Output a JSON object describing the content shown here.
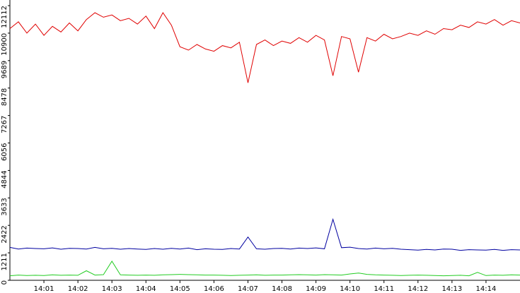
{
  "chart_data": {
    "type": "line",
    "x": [
      0,
      0.25,
      0.5,
      0.75,
      1,
      1.25,
      1.5,
      1.75,
      2,
      2.25,
      2.5,
      2.75,
      3,
      3.25,
      3.5,
      3.75,
      4,
      4.25,
      4.5,
      4.75,
      5,
      5.25,
      5.5,
      5.75,
      6,
      6.25,
      6.5,
      6.75,
      7,
      7.25,
      7.5,
      7.75,
      8,
      8.25,
      8.5,
      8.75,
      9,
      9.25,
      9.5,
      9.75,
      10,
      10.25,
      10.5,
      10.75,
      11,
      11.25,
      11.5,
      11.75,
      12,
      12.25,
      12.5,
      12.75,
      13,
      13.25,
      13.5,
      13.75,
      14,
      14.25,
      14.5,
      14.75,
      15
    ],
    "series": [
      {
        "color": "#e00000",
        "values": [
          11100,
          11400,
          10900,
          11300,
          10800,
          11200,
          10950,
          11350,
          11000,
          11500,
          11800,
          11600,
          11700,
          11450,
          11550,
          11300,
          11650,
          11100,
          11800,
          11250,
          10300,
          10150,
          10400,
          10200,
          10100,
          10350,
          10250,
          10500,
          8710,
          10400,
          10600,
          10350,
          10550,
          10450,
          10700,
          10500,
          10800,
          10600,
          9020,
          10750,
          10650,
          9180,
          10700,
          10550,
          10850,
          10650,
          10750,
          10900,
          10800,
          11000,
          10850,
          11100,
          11050,
          11250,
          11150,
          11400,
          11300,
          11500,
          11250,
          11450,
          11350
        ]
      },
      {
        "color": "#0000a0",
        "values": [
          1450,
          1380,
          1420,
          1400,
          1390,
          1430,
          1370,
          1410,
          1400,
          1380,
          1450,
          1390,
          1410,
          1370,
          1400,
          1380,
          1360,
          1400,
          1370,
          1410,
          1380,
          1420,
          1350,
          1390,
          1370,
          1360,
          1400,
          1380,
          1910,
          1390,
          1370,
          1400,
          1410,
          1380,
          1420,
          1400,
          1430,
          1390,
          2690,
          1440,
          1460,
          1400,
          1380,
          1420,
          1390,
          1410,
          1370,
          1350,
          1330,
          1360,
          1340,
          1380,
          1370,
          1320,
          1350,
          1340,
          1330,
          1360,
          1320,
          1350,
          1340
        ]
      },
      {
        "color": "#22cc22",
        "values": [
          200,
          230,
          210,
          220,
          210,
          240,
          220,
          230,
          220,
          420,
          230,
          250,
          840,
          240,
          230,
          220,
          230,
          220,
          240,
          250,
          260,
          250,
          240,
          230,
          230,
          220,
          210,
          220,
          230,
          240,
          220,
          230,
          230,
          240,
          250,
          240,
          230,
          250,
          240,
          230,
          280,
          320,
          260,
          240,
          230,
          220,
          210,
          220,
          230,
          220,
          210,
          200,
          210,
          220,
          200,
          350,
          210,
          230,
          220,
          240,
          230
        ]
      }
    ],
    "xlim": [
      0,
      15
    ],
    "xticks": [
      {
        "value": 1,
        "label": "14:01"
      },
      {
        "value": 2,
        "label": "14:02"
      },
      {
        "value": 3,
        "label": "14:03"
      },
      {
        "value": 4,
        "label": "14:04"
      },
      {
        "value": 5,
        "label": "14:05"
      },
      {
        "value": 6,
        "label": "14:06"
      },
      {
        "value": 7,
        "label": "14:07"
      },
      {
        "value": 8,
        "label": "14:08"
      },
      {
        "value": 9,
        "label": "14:09"
      },
      {
        "value": 10,
        "label": "14:10"
      },
      {
        "value": 11,
        "label": "14:11"
      },
      {
        "value": 12,
        "label": "14:12"
      },
      {
        "value": 13,
        "label": "14:13"
      },
      {
        "value": 14,
        "label": "14:14"
      }
    ],
    "ylim": [
      0,
      12112
    ],
    "yticks": [
      0,
      1211,
      2422,
      3633,
      4844,
      6056,
      7267,
      8478,
      9689,
      10900,
      12112
    ]
  }
}
